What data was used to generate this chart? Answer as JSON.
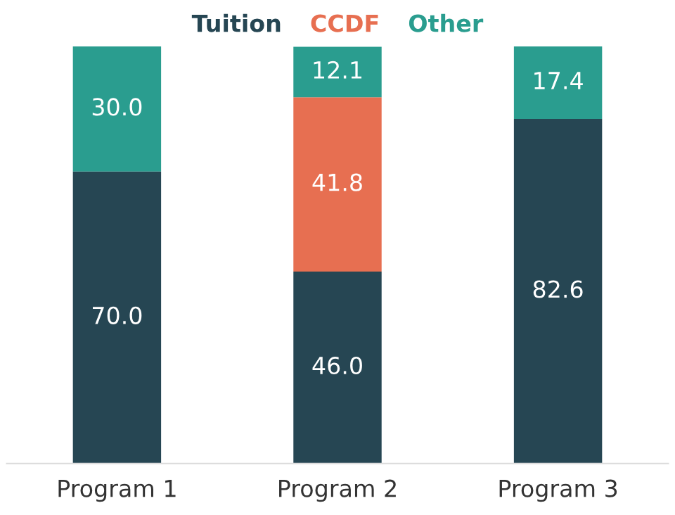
{
  "chart_data": {
    "type": "bar",
    "stacked": true,
    "legend": "top",
    "tick_labels": "x",
    "categories": [
      "Program 1",
      "Program 2",
      "Program 3"
    ],
    "series": [
      {
        "name": "Tuition",
        "color": "#264653",
        "values": [
          70.0,
          46.0,
          82.6
        ],
        "value_labels": [
          "70.0",
          "46.0",
          "82.6"
        ]
      },
      {
        "name": "CCDF",
        "color": "#e76f51",
        "values": [
          null,
          41.8,
          null
        ],
        "value_labels": [
          null,
          "41.8",
          null
        ]
      },
      {
        "name": "Other",
        "color": "#2a9d8f",
        "values": [
          30.0,
          12.1,
          17.4
        ],
        "value_labels": [
          "30.0",
          "12.1",
          "17.4"
        ]
      }
    ]
  }
}
